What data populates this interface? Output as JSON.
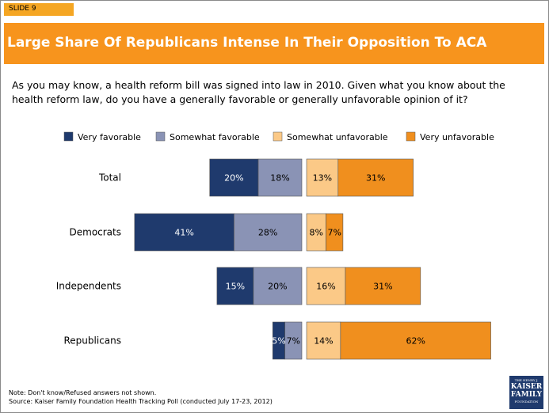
{
  "slide_label": "SLIDE 9",
  "title": "Large Share Of Republicans Intense In Their Opposition To ACA",
  "question": "As you may know, a health reform bill was signed into law in 2010. Given what you know about the health reform law, do you have a generally favorable or generally unfavorable opinion of it?",
  "note": "Note: Don't know/Refused answers not shown.",
  "source": "Source: Kaiser Family Foundation Health Tracking Poll (conducted July 17-23, 2012)",
  "logo": {
    "top": "THE HENRY J.",
    "line1": "KAISER",
    "line2": "FAMILY",
    "bottom": "FOUNDATION"
  },
  "colors": {
    "very_favorable": "#1f3a6d",
    "somewhat_favorable": "#8a93b5",
    "somewhat_unfavorable": "#fbc987",
    "very_unfavorable": "#f08f1e",
    "title_bar": "#f7941d"
  },
  "chart_data": {
    "type": "bar",
    "orientation": "horizontal-diverging",
    "categories": [
      "Total",
      "Democrats",
      "Independents",
      "Republicans"
    ],
    "series": [
      {
        "name": "Very favorable",
        "side": "favorable",
        "values": [
          20,
          41,
          15,
          5
        ]
      },
      {
        "name": "Somewhat favorable",
        "side": "favorable",
        "values": [
          18,
          28,
          20,
          7
        ]
      },
      {
        "name": "Somewhat unfavorable",
        "side": "unfavorable",
        "values": [
          13,
          8,
          16,
          14
        ]
      },
      {
        "name": "Very unfavorable",
        "side": "unfavorable",
        "values": [
          31,
          7,
          31,
          62
        ]
      }
    ],
    "unit": "%",
    "legend_position": "top"
  }
}
